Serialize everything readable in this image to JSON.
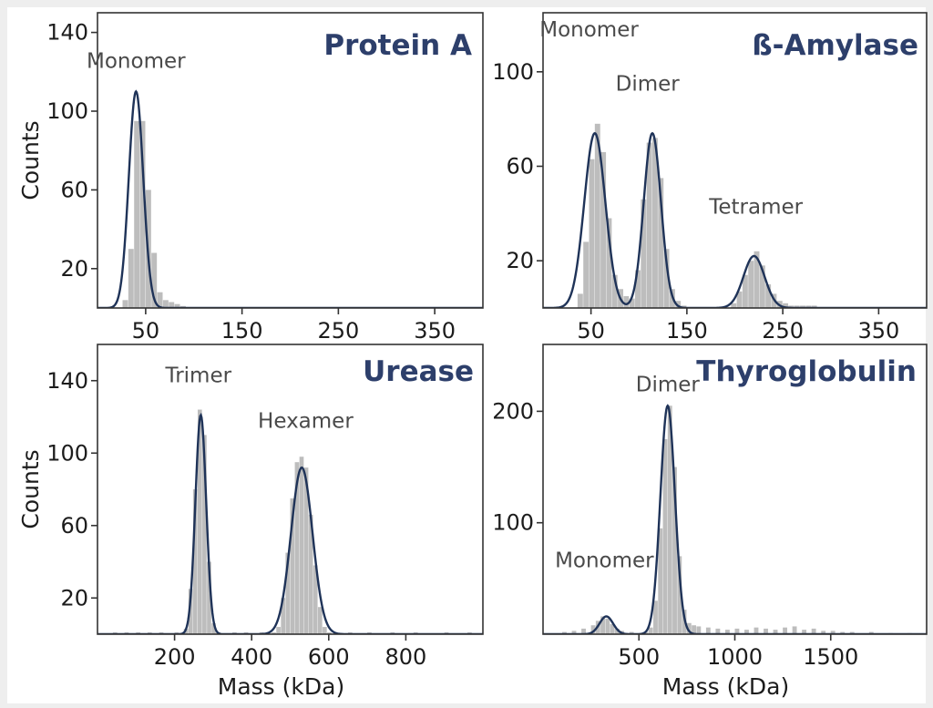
{
  "colors": {
    "bar": "#bdbdbd",
    "fit": "#1f3358",
    "title": "#2d3f6b",
    "frame": "#333333",
    "text": "#1c1c1c",
    "peak_label": "#4a4a4a",
    "background": "#eeeeee"
  },
  "chart_data": [
    {
      "id": "protein-a",
      "type": "bar",
      "title": "Protein A",
      "ylabel": "Counts",
      "xlabel": "",
      "xlim": [
        0,
        400
      ],
      "ylim": [
        0,
        150
      ],
      "xticks": [
        50,
        150,
        250,
        350
      ],
      "yticks": [
        20,
        60,
        100,
        140
      ],
      "grid": false,
      "series": [
        {
          "type": "histogram",
          "bin_width": 6,
          "bins": [
            [
              20,
              0
            ],
            [
              26,
              4
            ],
            [
              32,
              30
            ],
            [
              38,
              95
            ],
            [
              44,
              95
            ],
            [
              50,
              60
            ],
            [
              56,
              28
            ],
            [
              62,
              8
            ],
            [
              68,
              4
            ],
            [
              74,
              3
            ],
            [
              80,
              2
            ],
            [
              86,
              1
            ]
          ]
        },
        {
          "type": "gaussian_fit",
          "peaks": [
            {
              "center": 40,
              "sigma": 7.5,
              "height": 110
            }
          ]
        }
      ],
      "annotations": [
        {
          "text": "Monomer",
          "x": 40,
          "y": 122
        }
      ]
    },
    {
      "id": "beta-amylase",
      "type": "bar",
      "title": "ß-Amylase",
      "ylabel": "",
      "xlabel": "",
      "xlim": [
        0,
        400
      ],
      "ylim": [
        0,
        125
      ],
      "xticks": [
        50,
        150,
        250,
        350
      ],
      "yticks": [
        20,
        60,
        100
      ],
      "grid": false,
      "series": [
        {
          "type": "histogram",
          "bin_width": 6,
          "bins": [
            [
              30,
              0
            ],
            [
              36,
              6
            ],
            [
              42,
              28
            ],
            [
              48,
              63
            ],
            [
              54,
              78
            ],
            [
              60,
              66
            ],
            [
              66,
              38
            ],
            [
              72,
              14
            ],
            [
              78,
              8
            ],
            [
              84,
              5
            ],
            [
              90,
              4
            ],
            [
              96,
              16
            ],
            [
              102,
              46
            ],
            [
              108,
              70
            ],
            [
              114,
              72
            ],
            [
              120,
              55
            ],
            [
              126,
              25
            ],
            [
              132,
              8
            ],
            [
              138,
              3
            ],
            [
              144,
              1
            ],
            [
              196,
              2
            ],
            [
              202,
              7
            ],
            [
              208,
              14
            ],
            [
              214,
              20
            ],
            [
              220,
              24
            ],
            [
              226,
              18
            ],
            [
              232,
              10
            ],
            [
              238,
              6
            ],
            [
              244,
              3
            ],
            [
              250,
              2
            ],
            [
              256,
              1
            ],
            [
              262,
              1
            ],
            [
              268,
              1
            ],
            [
              274,
              1
            ],
            [
              280,
              1
            ]
          ]
        },
        {
          "type": "gaussian_fit",
          "peaks": [
            {
              "center": 54,
              "sigma": 11,
              "height": 74
            },
            {
              "center": 114,
              "sigma": 9,
              "height": 74
            },
            {
              "center": 220,
              "sigma": 11,
              "height": 22
            }
          ]
        }
      ],
      "annotations": [
        {
          "text": "Monomer",
          "x": 48,
          "y": 115
        },
        {
          "text": "Dimer",
          "x": 109,
          "y": 92
        },
        {
          "text": "Tetramer",
          "x": 222,
          "y": 40
        }
      ]
    },
    {
      "id": "urease",
      "type": "bar",
      "title": "Urease",
      "ylabel": "Counts",
      "xlabel": "Mass (kDa)",
      "xlim": [
        0,
        1000
      ],
      "ylim": [
        0,
        160
      ],
      "xticks": [
        200,
        400,
        600,
        800
      ],
      "yticks": [
        20,
        60,
        100,
        140
      ],
      "grid": false,
      "series": [
        {
          "type": "histogram",
          "bin_width": 12,
          "bins": [
            [
              40,
              1
            ],
            [
              70,
              1
            ],
            [
              100,
              1
            ],
            [
              130,
              1
            ],
            [
              160,
              1
            ],
            [
              200,
              1
            ],
            [
              224,
              3
            ],
            [
              236,
              25
            ],
            [
              248,
              80
            ],
            [
              260,
              124
            ],
            [
              272,
              110
            ],
            [
              284,
              40
            ],
            [
              296,
              6
            ],
            [
              308,
              1
            ],
            [
              350,
              1
            ],
            [
              380,
              1
            ],
            [
              420,
              1
            ],
            [
              452,
              1
            ],
            [
              464,
              4
            ],
            [
              476,
              20
            ],
            [
              488,
              45
            ],
            [
              500,
              75
            ],
            [
              512,
              95
            ],
            [
              524,
              98
            ],
            [
              536,
              92
            ],
            [
              548,
              66
            ],
            [
              560,
              38
            ],
            [
              572,
              15
            ],
            [
              584,
              4
            ],
            [
              596,
              1
            ],
            [
              650,
              1
            ],
            [
              700,
              1
            ],
            [
              760,
              1
            ],
            [
              820,
              1
            ],
            [
              900,
              1
            ],
            [
              960,
              1
            ]
          ]
        },
        {
          "type": "gaussian_fit",
          "peaks": [
            {
              "center": 268,
              "sigma": 14,
              "height": 121
            },
            {
              "center": 530,
              "sigma": 28,
              "height": 92
            }
          ]
        }
      ],
      "annotations": [
        {
          "text": "Trimer",
          "x": 262,
          "y": 139
        },
        {
          "text": "Hexamer",
          "x": 540,
          "y": 114
        }
      ]
    },
    {
      "id": "thyroglobulin",
      "type": "bar",
      "title": "Thyroglobulin",
      "ylabel": "",
      "xlabel": "Mass (kDa)",
      "xlim": [
        0,
        2000
      ],
      "ylim": [
        0,
        260
      ],
      "xticks": [
        500,
        1000,
        1500
      ],
      "yticks": [
        100,
        200
      ],
      "grid": false,
      "series": [
        {
          "type": "histogram",
          "bin_width": 25,
          "bins": [
            [
              100,
              2
            ],
            [
              150,
              3
            ],
            [
              200,
              5
            ],
            [
              250,
              8
            ],
            [
              275,
              12
            ],
            [
              300,
              16
            ],
            [
              325,
              14
            ],
            [
              350,
              9
            ],
            [
              375,
              5
            ],
            [
              400,
              3
            ],
            [
              450,
              2
            ],
            [
              525,
              2
            ],
            [
              550,
              6
            ],
            [
              575,
              30
            ],
            [
              600,
              95
            ],
            [
              625,
              175
            ],
            [
              650,
              205
            ],
            [
              675,
              150
            ],
            [
              700,
              70
            ],
            [
              725,
              22
            ],
            [
              750,
              10
            ],
            [
              775,
              8
            ],
            [
              800,
              7
            ],
            [
              850,
              6
            ],
            [
              900,
              5
            ],
            [
              950,
              4
            ],
            [
              1000,
              5
            ],
            [
              1050,
              4
            ],
            [
              1100,
              6
            ],
            [
              1150,
              5
            ],
            [
              1200,
              4
            ],
            [
              1250,
              6
            ],
            [
              1300,
              7
            ],
            [
              1350,
              4
            ],
            [
              1400,
              5
            ],
            [
              1450,
              3
            ],
            [
              1500,
              3
            ],
            [
              1550,
              2
            ],
            [
              1600,
              2
            ],
            [
              1700,
              2
            ],
            [
              1800,
              1
            ],
            [
              1900,
              1
            ]
          ]
        },
        {
          "type": "gaussian_fit",
          "peaks": [
            {
              "center": 330,
              "sigma": 35,
              "height": 16
            },
            {
              "center": 650,
              "sigma": 38,
              "height": 205
            }
          ]
        }
      ],
      "annotations": [
        {
          "text": "Monomer",
          "x": 320,
          "y": 60
        },
        {
          "text": "Dimer",
          "x": 650,
          "y": 218
        }
      ]
    }
  ]
}
